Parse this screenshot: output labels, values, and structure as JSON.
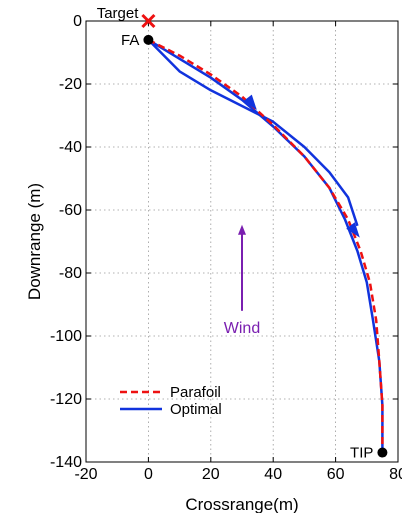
{
  "chart_data": {
    "type": "line",
    "xlabel": "Crossrange(m)",
    "ylabel": "Downrange (m)",
    "xlim": [
      -20,
      80
    ],
    "ylim": [
      -140,
      0
    ],
    "xticks": [
      -20,
      0,
      20,
      40,
      60,
      80
    ],
    "yticks": [
      0,
      -20,
      -40,
      -60,
      -80,
      -100,
      -120,
      -140
    ],
    "grid": true,
    "legend_position": "bottom-left",
    "series": [
      {
        "name": "Parafoil",
        "color": "#ee1111",
        "style": "dashed",
        "points": [
          [
            0,
            -6
          ],
          [
            10,
            -11
          ],
          [
            20,
            -17
          ],
          [
            30,
            -24
          ],
          [
            40,
            -33
          ],
          [
            50,
            -43
          ],
          [
            58,
            -53
          ],
          [
            64,
            -63
          ],
          [
            68,
            -73
          ],
          [
            71,
            -83
          ],
          [
            73,
            -95
          ],
          [
            74,
            -108
          ],
          [
            75,
            -122
          ],
          [
            75,
            -137
          ]
        ]
      },
      {
        "name": "Optimal",
        "color": "#1133dd",
        "style": "solid",
        "points": [
          [
            0,
            -6
          ],
          [
            10,
            -12
          ],
          [
            20,
            -18
          ],
          [
            30,
            -25
          ],
          [
            40,
            -33.5
          ],
          [
            50,
            -43
          ],
          [
            58,
            -53
          ],
          [
            63,
            -63
          ],
          [
            67,
            -73
          ],
          [
            70,
            -83
          ],
          [
            72,
            -95
          ],
          [
            74,
            -108
          ],
          [
            75,
            -122
          ],
          [
            75,
            -137
          ]
        ],
        "loop_points": [
          [
            0,
            -6
          ],
          [
            10,
            -16
          ],
          [
            20,
            -22
          ],
          [
            30,
            -27
          ],
          [
            40,
            -32
          ],
          [
            50,
            -40
          ],
          [
            58,
            -48
          ],
          [
            64,
            -56
          ],
          [
            67,
            -65
          ]
        ],
        "arrows": [
          [
            33,
            -26
          ],
          [
            66,
            -66.5
          ]
        ]
      }
    ],
    "markers": [
      {
        "label": "Target",
        "x": 0,
        "y": 0,
        "shape": "x",
        "color": "#ee1111"
      },
      {
        "label": "FA",
        "x": 0,
        "y": -6,
        "shape": "dot",
        "color": "#000000"
      },
      {
        "label": "TIP",
        "x": 75,
        "y": -137,
        "shape": "dot",
        "color": "#000000"
      }
    ],
    "wind": {
      "label": "Wind",
      "x": 30,
      "y_from": -92,
      "y_to": -65,
      "color": "#7a1fb0"
    }
  }
}
